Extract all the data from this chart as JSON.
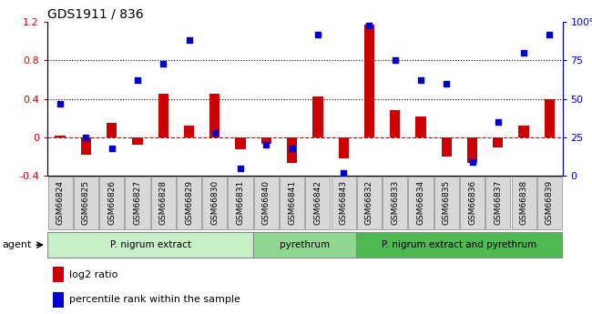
{
  "title": "GDS1911 / 836",
  "samples": [
    "GSM66824",
    "GSM66825",
    "GSM66826",
    "GSM66827",
    "GSM66828",
    "GSM66829",
    "GSM66830",
    "GSM66831",
    "GSM66840",
    "GSM66841",
    "GSM66842",
    "GSM66843",
    "GSM66832",
    "GSM66833",
    "GSM66834",
    "GSM66835",
    "GSM66836",
    "GSM66837",
    "GSM66838",
    "GSM66839"
  ],
  "log2_ratio": [
    0.02,
    -0.18,
    0.15,
    -0.08,
    0.45,
    0.12,
    0.45,
    -0.12,
    -0.07,
    -0.27,
    0.43,
    -0.22,
    1.17,
    0.28,
    0.22,
    -0.2,
    -0.27,
    -0.1,
    0.12,
    0.4
  ],
  "pct_rank": [
    47,
    25,
    18,
    62,
    73,
    88,
    28,
    5,
    20,
    18,
    92,
    2,
    98,
    75,
    62,
    60,
    9,
    35,
    80,
    92
  ],
  "groups": [
    {
      "label": "P. nigrum extract",
      "start": 0,
      "end": 8,
      "color": "#c8f0c8"
    },
    {
      "label": "pyrethrum",
      "start": 8,
      "end": 12,
      "color": "#90d890"
    },
    {
      "label": "P. nigrum extract and pyrethrum",
      "start": 12,
      "end": 20,
      "color": "#50b850"
    }
  ],
  "ylim_left": [
    -0.4,
    1.2
  ],
  "ylim_right": [
    0,
    100
  ],
  "bar_color": "#cc0000",
  "dot_color": "#0000cc",
  "hline_color": "#cc0000",
  "bg_color": "#d8d8d8",
  "bar_width": 0.4
}
